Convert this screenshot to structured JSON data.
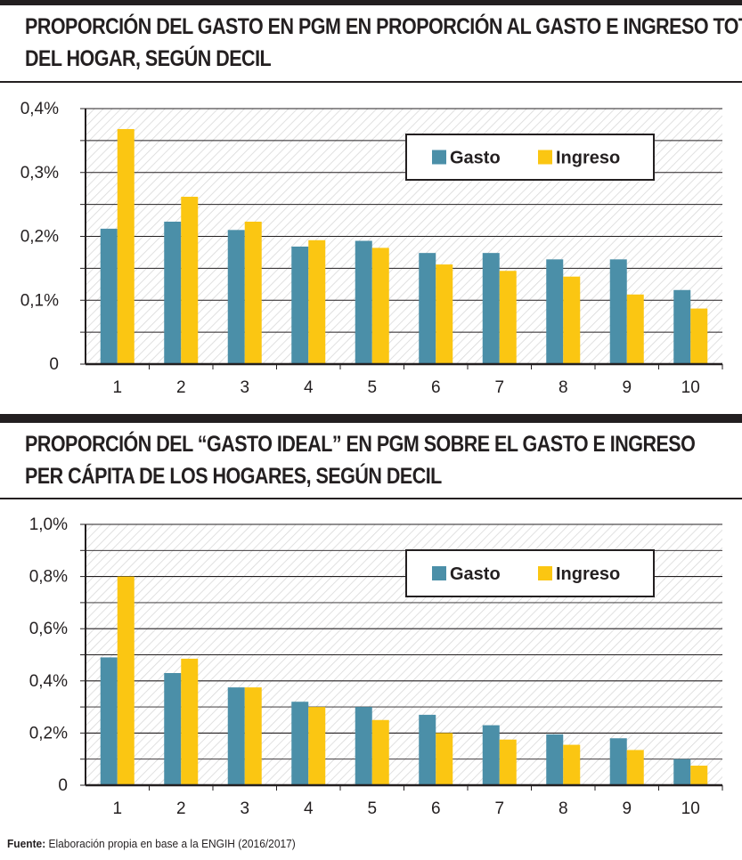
{
  "colors": {
    "gasto": "#4b8fa8",
    "ingreso": "#fbc612",
    "frame": "#231f20",
    "grid": "#231f20",
    "hatch": "#d9d9d9"
  },
  "chart_data": [
    {
      "type": "bar",
      "title": "PROPORCIÓN DEL GASTO EN PGM EN PROPORCIÓN AL GASTO E INGRESO TOTAL DEL HOGAR, SEGÚN DECIL",
      "title_lines": [
        "PROPORCIÓN DEL GASTO EN PGM EN PROPORCIÓN AL GASTO E INGRESO TOTAL",
        "DEL HOGAR, SEGÚN DECIL"
      ],
      "categories": [
        "1",
        "2",
        "3",
        "4",
        "5",
        "6",
        "7",
        "8",
        "9",
        "10"
      ],
      "series": [
        {
          "name": "Gasto",
          "values": [
            0.212,
            0.223,
            0.21,
            0.184,
            0.193,
            0.174,
            0.174,
            0.164,
            0.164,
            0.116
          ]
        },
        {
          "name": "Ingreso",
          "values": [
            0.368,
            0.262,
            0.223,
            0.194,
            0.182,
            0.156,
            0.146,
            0.137,
            0.109,
            0.087
          ]
        }
      ],
      "ylim": [
        0,
        0.4
      ],
      "yticks": [
        0,
        0.1,
        0.2,
        0.3,
        0.4
      ],
      "yticklabels": [
        "0",
        "0,1%",
        "0,2%",
        "0,3%",
        "0,4%"
      ],
      "grid": true,
      "legend": "top-right"
    },
    {
      "type": "bar",
      "title": "PROPORCIÓN DEL “GASTO IDEAL” EN PGM SOBRE EL GASTO E INGRESO PER CÁPITA DE LOS HOGARES, SEGÚN DECIL",
      "title_lines": [
        "PROPORCIÓN DEL “GASTO IDEAL” EN PGM SOBRE EL GASTO E INGRESO",
        "PER CÁPITA DE LOS HOGARES, SEGÚN DECIL"
      ],
      "categories": [
        "1",
        "2",
        "3",
        "4",
        "5",
        "6",
        "7",
        "8",
        "9",
        "10"
      ],
      "series": [
        {
          "name": "Gasto",
          "values": [
            0.49,
            0.43,
            0.375,
            0.32,
            0.3,
            0.27,
            0.23,
            0.195,
            0.18,
            0.1
          ]
        },
        {
          "name": "Ingreso",
          "values": [
            0.8,
            0.485,
            0.375,
            0.3,
            0.25,
            0.2,
            0.175,
            0.155,
            0.135,
            0.075
          ]
        }
      ],
      "ylim": [
        0,
        1.0
      ],
      "yticks": [
        0,
        0.2,
        0.4,
        0.6,
        0.8,
        1.0
      ],
      "yticklabels": [
        "0",
        "0,2%",
        "0,4%",
        "0,6%",
        "0,8%",
        "1,0%"
      ],
      "grid": true,
      "legend": "top-right"
    }
  ],
  "source": {
    "label": "Fuente:",
    "text": " Elaboración propia en base a la ENGIH (2016/2017)"
  }
}
